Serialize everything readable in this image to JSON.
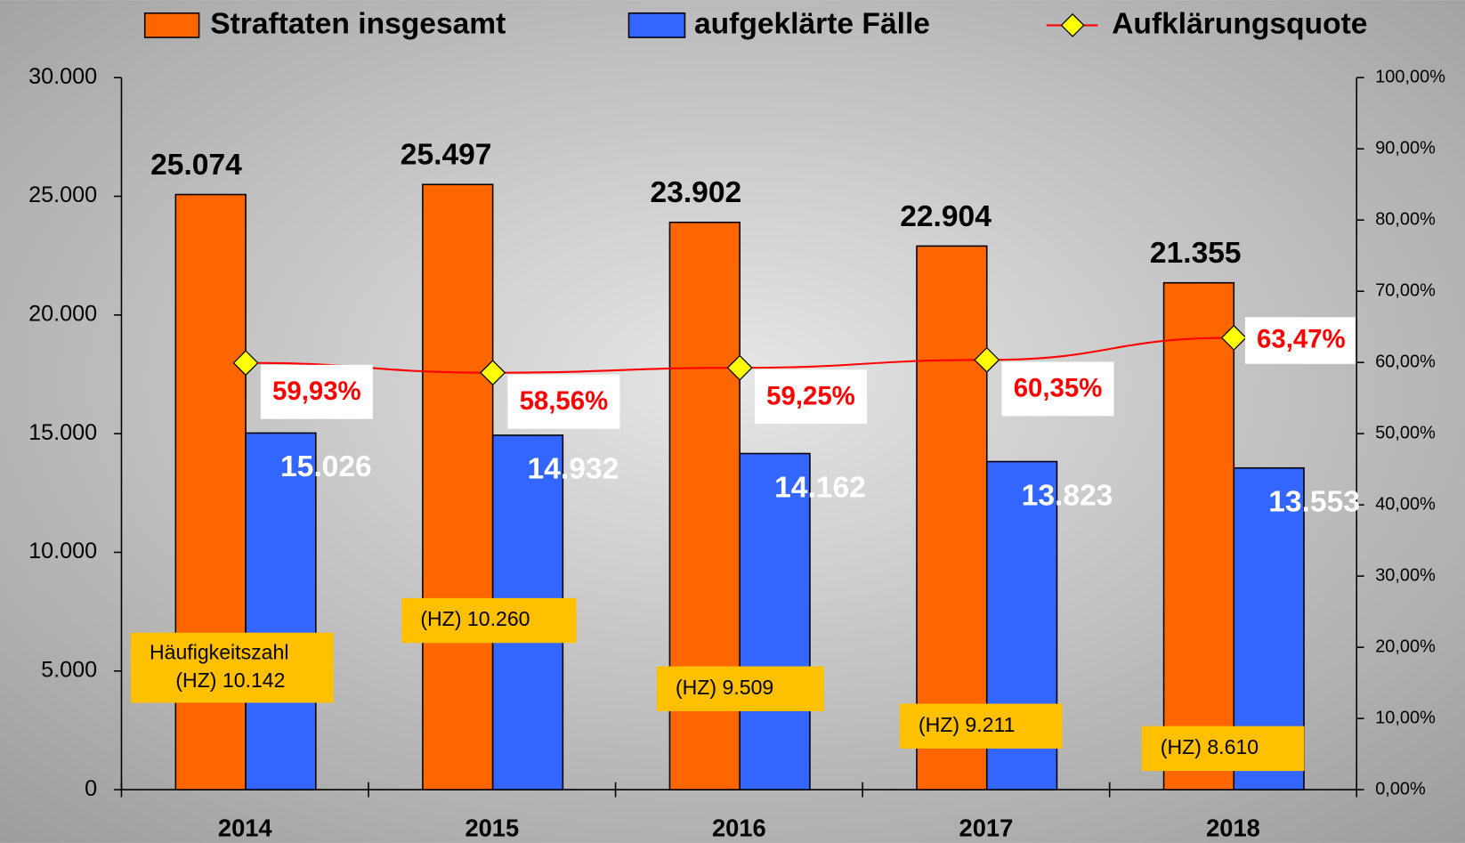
{
  "chart_data": {
    "type": "bar",
    "categories": [
      "2014",
      "2015",
      "2016",
      "2017",
      "2018"
    ],
    "series": [
      {
        "name": "Straftaten insgesamt",
        "color": "#ff6600",
        "values": [
          25074,
          25497,
          23902,
          22904,
          21355
        ],
        "value_labels": [
          "25.074",
          "25.497",
          "23.902",
          "22.904",
          "21.355"
        ]
      },
      {
        "name": "aufgeklärte Fälle",
        "color": "#3366ff",
        "values": [
          15026,
          14932,
          14162,
          13823,
          13553
        ],
        "value_labels": [
          "15.026",
          "14.932",
          "14.162",
          "13.823",
          "13.553"
        ]
      },
      {
        "name": "Aufklärungsquote",
        "type": "line",
        "axis": "y2",
        "color": "#ff0000",
        "marker_color": "#ffff00",
        "values": [
          59.93,
          58.56,
          59.25,
          60.35,
          63.47
        ],
        "value_labels": [
          "59,93%",
          "58,56%",
          "59,25%",
          "60,35%",
          "63,47%"
        ]
      }
    ],
    "ylim": [
      0,
      30000
    ],
    "yticks": [
      0,
      {
        "value": 5000,
        "label": "5.000"
      },
      {
        "value": 10000,
        "label": "10.000"
      },
      {
        "value": 15000,
        "label": "15.000"
      },
      {
        "value": 20000,
        "label": "20.000"
      },
      {
        "value": 25000,
        "label": "25.000"
      },
      {
        "value": 30000,
        "label": "30.000"
      }
    ],
    "y2lim": [
      0,
      100
    ],
    "y2ticks": [
      {
        "value": 0,
        "label": "0,00%"
      },
      {
        "value": 10,
        "label": "10,00%"
      },
      {
        "value": 20,
        "label": "20,00%"
      },
      {
        "value": 30,
        "label": "30,00%"
      },
      {
        "value": 40,
        "label": "40,00%"
      },
      {
        "value": 50,
        "label": "50,00%"
      },
      {
        "value": 60,
        "label": "60,00%"
      },
      {
        "value": 70,
        "label": "70,00%"
      },
      {
        "value": 80,
        "label": "80,00%"
      },
      {
        "value": 90,
        "label": "90,00%"
      },
      {
        "value": 100,
        "label": "100,00%"
      }
    ],
    "annotations": [
      {
        "lines": [
          "Häufigkeitszahl",
          "(HZ) 10.142"
        ]
      },
      {
        "lines": [
          "(HZ) 10.260"
        ]
      },
      {
        "lines": [
          "(HZ) 9.509"
        ]
      },
      {
        "lines": [
          "(HZ) 9.211"
        ]
      },
      {
        "lines": [
          "(HZ) 8.610"
        ]
      }
    ],
    "legend": "top"
  }
}
